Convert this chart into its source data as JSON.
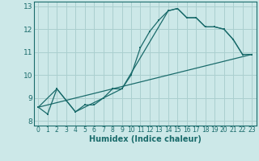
{
  "xlabel": "Humidex (Indice chaleur)",
  "bg_color": "#cce8e8",
  "grid_color": "#aacfcf",
  "line_color": "#1a6b6b",
  "xlim": [
    -0.5,
    23.5
  ],
  "ylim": [
    7.8,
    13.2
  ],
  "xticks": [
    0,
    1,
    2,
    3,
    4,
    5,
    6,
    7,
    8,
    9,
    10,
    11,
    12,
    13,
    14,
    15,
    16,
    17,
    18,
    19,
    20,
    21,
    22,
    23
  ],
  "yticks": [
    8,
    9,
    10,
    11,
    12,
    13
  ],
  "series1_x": [
    0,
    1,
    2,
    3,
    4,
    5,
    6,
    7,
    8,
    9,
    10,
    11,
    12,
    13,
    14,
    15,
    16,
    17,
    18,
    19,
    20,
    21,
    22,
    23
  ],
  "series1_y": [
    8.6,
    8.3,
    9.4,
    8.9,
    8.4,
    8.7,
    8.7,
    9.0,
    9.4,
    9.4,
    10.0,
    11.2,
    11.9,
    12.4,
    12.8,
    12.9,
    12.5,
    12.5,
    12.1,
    12.1,
    12.0,
    11.55,
    10.9,
    10.9
  ],
  "series2_x": [
    0,
    23
  ],
  "series2_y": [
    8.6,
    10.9
  ],
  "series3_x": [
    0,
    2,
    4,
    9,
    14,
    15,
    16,
    17,
    18,
    19,
    20,
    21,
    22,
    23
  ],
  "series3_y": [
    8.6,
    9.4,
    8.4,
    9.4,
    12.8,
    12.9,
    12.5,
    12.5,
    12.1,
    12.1,
    12.0,
    11.55,
    10.9,
    10.9
  ]
}
